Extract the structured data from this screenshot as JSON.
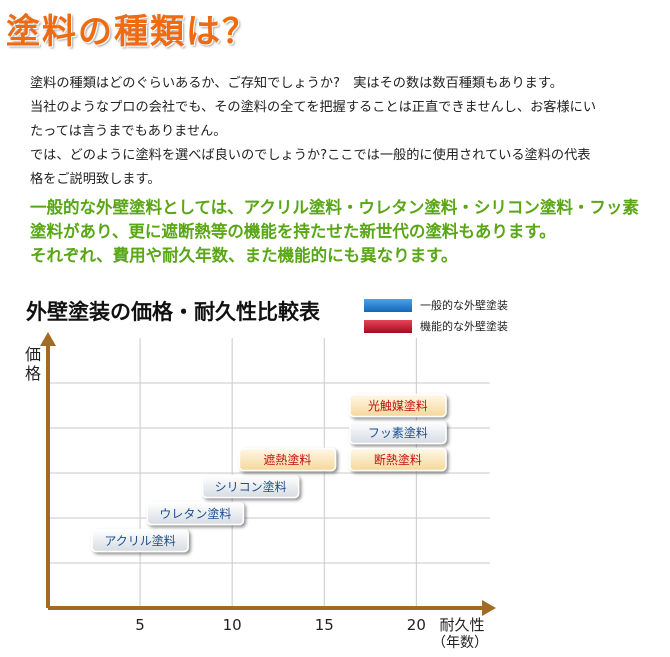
{
  "heading": "塗料の種類は？",
  "intro": [
    "塗料の種類はどのぐらいあるか、ご存知でしょうか?　実はその数は数百種類もあります。",
    "当社のようなプロの会社でも、その塗料の全てを把握することは正直できませんし、お客様にい",
    "たっては言うまでもありません。",
    "では、どのように塗料を選べば良いのでしょうか?ここでは一般的に使用されている塗料の代表",
    "格をご説明致します。"
  ],
  "highlight": [
    "一般的な外壁塗料としては、アクリル塗料・ウレタン塗料・シリコン塗料・フッ素",
    "塗料があり、更に遮断熱等の機能を持たせた新世代の塗料もあります。",
    "それぞれ、費用や耐久年数、また機能的にも異なります。"
  ],
  "colors": {
    "heading": "#ef6a10",
    "highlight": "#5aa615",
    "axis": "#a36a22",
    "general": "#1f7fd0",
    "functional": "#c8102e"
  },
  "chart_data": {
    "type": "scatter",
    "title": "外壁塗装の価格・耐久性比較表",
    "xlabel": "耐久性",
    "xlabel_unit": "（年数）",
    "ylabel": "価格",
    "x_ticks": [
      5,
      10,
      15,
      20
    ],
    "xlim": [
      0,
      24
    ],
    "ylim": [
      0,
      6
    ],
    "grid": true,
    "legend_position": "top-right",
    "series": [
      {
        "name": "一般的な外壁塗装",
        "color": "#1f7fd0",
        "points": [
          {
            "label": "アクリル塗料",
            "x": 5,
            "y": 1.5
          },
          {
            "label": "ウレタン塗料",
            "x": 8,
            "y": 2.1
          },
          {
            "label": "シリコン塗料",
            "x": 11,
            "y": 2.7
          },
          {
            "label": "フッ素塗料",
            "x": 19,
            "y": 3.9
          }
        ]
      },
      {
        "name": "機能的な外壁塗装",
        "color": "#c8102e",
        "points": [
          {
            "label": "遮熱塗料",
            "x": 13,
            "y": 3.3
          },
          {
            "label": "断熱塗料",
            "x": 19,
            "y": 3.3
          },
          {
            "label": "光触媒塗料",
            "x": 19,
            "y": 4.5
          }
        ]
      }
    ]
  }
}
